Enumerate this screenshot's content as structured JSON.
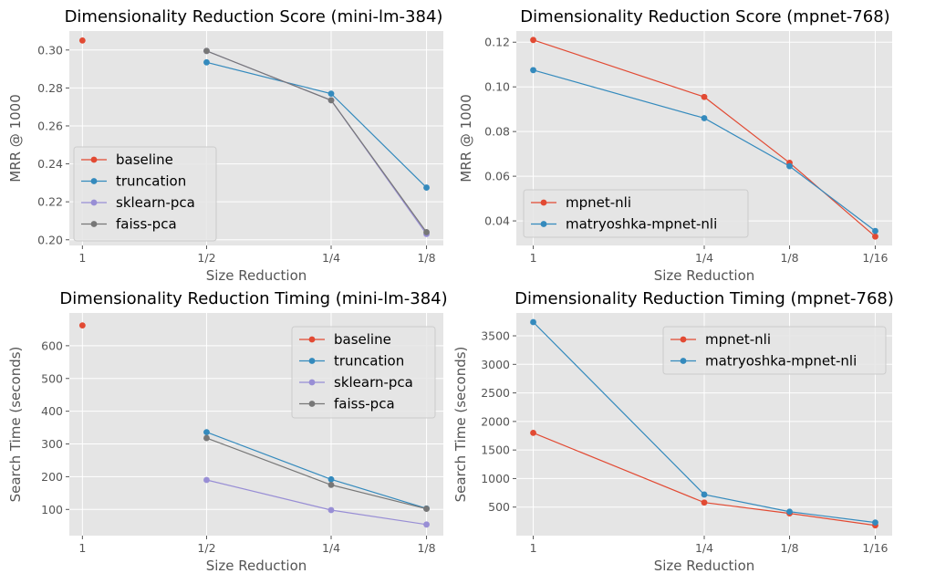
{
  "chart_data": [
    {
      "type": "line",
      "title": "Dimensionality Reduction Score (mini-lm-384)",
      "xlabel": "Size Reduction",
      "ylabel": "MRR @ 1000",
      "categories": [
        "1",
        "1/2",
        "1/4",
        "1/8"
      ],
      "ylim": [
        0.197,
        0.31
      ],
      "yticks": [
        0.2,
        0.22,
        0.24,
        0.26,
        0.28,
        0.3
      ],
      "ytick_labels": [
        "0.20",
        "0.22",
        "0.24",
        "0.26",
        "0.28",
        "0.30"
      ],
      "grid": true,
      "legend": "center-left",
      "series": [
        {
          "name": "baseline",
          "color": "#E24A33",
          "values": [
            0.305,
            null,
            null,
            null
          ]
        },
        {
          "name": "truncation",
          "color": "#348ABD",
          "values": [
            null,
            0.2935,
            0.277,
            0.2275
          ]
        },
        {
          "name": "sklearn-pca",
          "color": "#988ED5",
          "values": [
            null,
            0.2995,
            0.2735,
            0.203
          ]
        },
        {
          "name": "faiss-pca",
          "color": "#777777",
          "values": [
            null,
            0.2995,
            0.2735,
            0.204
          ]
        }
      ]
    },
    {
      "type": "line",
      "title": "Dimensionality Reduction Score (mpnet-768)",
      "xlabel": "Size Reduction",
      "ylabel": "MRR @ 1000",
      "categories": [
        "1",
        "1/4",
        "1/8",
        "1/16"
      ],
      "x": [
        1,
        4,
        8,
        16
      ],
      "xscale": "log",
      "ylim": [
        0.029,
        0.125
      ],
      "yticks": [
        0.04,
        0.06,
        0.08,
        0.1,
        0.12
      ],
      "ytick_labels": [
        "0.04",
        "0.06",
        "0.08",
        "0.10",
        "0.12"
      ],
      "grid": true,
      "legend": "lower-left",
      "series": [
        {
          "name": "mpnet-nli",
          "color": "#E24A33",
          "values": [
            0.121,
            0.0955,
            0.066,
            0.033
          ]
        },
        {
          "name": "matryoshka-mpnet-nli",
          "color": "#348ABD",
          "values": [
            0.1075,
            0.086,
            0.0645,
            0.0355
          ]
        }
      ]
    },
    {
      "type": "line",
      "title": "Dimensionality Reduction Timing (mini-lm-384)",
      "xlabel": "Size Reduction",
      "ylabel": "Search Time (seconds)",
      "categories": [
        "1",
        "1/2",
        "1/4",
        "1/8"
      ],
      "ylim": [
        20,
        700
      ],
      "yticks": [
        100,
        200,
        300,
        400,
        500,
        600
      ],
      "ytick_labels": [
        "100",
        "200",
        "300",
        "400",
        "500",
        "600"
      ],
      "grid": true,
      "legend": "upper-right",
      "series": [
        {
          "name": "baseline",
          "color": "#E24A33",
          "values": [
            662,
            null,
            null,
            null
          ]
        },
        {
          "name": "truncation",
          "color": "#348ABD",
          "values": [
            null,
            336,
            192,
            103
          ]
        },
        {
          "name": "sklearn-pca",
          "color": "#988ED5",
          "values": [
            null,
            190,
            98,
            54
          ]
        },
        {
          "name": "faiss-pca",
          "color": "#777777",
          "values": [
            null,
            318,
            175,
            102
          ]
        }
      ]
    },
    {
      "type": "line",
      "title": "Dimensionality Reduction Timing (mpnet-768)",
      "xlabel": "Size Reduction",
      "ylabel": "Search Time (seconds)",
      "categories": [
        "1",
        "1/4",
        "1/8",
        "1/16"
      ],
      "x": [
        1,
        4,
        8,
        16
      ],
      "xscale": "log",
      "ylim": [
        0,
        3900
      ],
      "yticks": [
        500,
        1000,
        1500,
        2000,
        2500,
        3000,
        3500
      ],
      "ytick_labels": [
        "500",
        "1000",
        "1500",
        "2000",
        "2500",
        "3000",
        "3500"
      ],
      "grid": true,
      "legend": "upper-center",
      "series": [
        {
          "name": "mpnet-nli",
          "color": "#E24A33",
          "values": [
            1800,
            580,
            390,
            180
          ]
        },
        {
          "name": "matryoshka-mpnet-nli",
          "color": "#348ABD",
          "values": [
            3740,
            720,
            420,
            230
          ]
        }
      ]
    }
  ]
}
